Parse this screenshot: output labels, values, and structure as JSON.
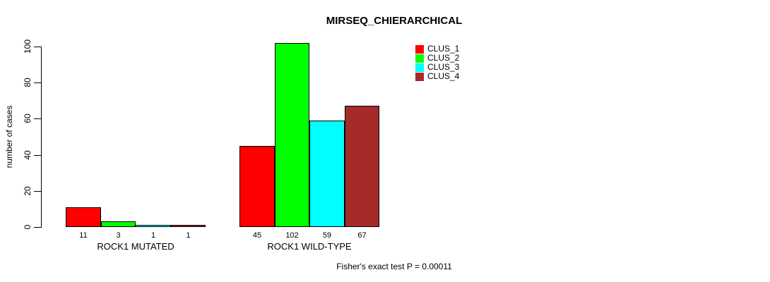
{
  "chart_data": {
    "type": "bar",
    "title": "MIRSEQ_CHIERARCHICAL",
    "xlabel": "",
    "ylabel": "number of cases",
    "ylim": [
      0,
      100
    ],
    "yticks": [
      0,
      20,
      40,
      60,
      80,
      100
    ],
    "grid": false,
    "legend_position": "top-right",
    "categories": [
      "ROCK1 MUTATED",
      "ROCK1 WILD-TYPE"
    ],
    "series": [
      {
        "name": "CLUS_1",
        "color": "#ff0000",
        "values": [
          11,
          45
        ]
      },
      {
        "name": "CLUS_2",
        "color": "#00ff00",
        "values": [
          3,
          102
        ]
      },
      {
        "name": "CLUS_3",
        "color": "#00ffff",
        "values": [
          1,
          59
        ]
      },
      {
        "name": "CLUS_4",
        "color": "#a52a2a",
        "values": [
          1,
          67
        ]
      }
    ],
    "bar_value_labels": [
      [
        11,
        3,
        1,
        1
      ],
      [
        45,
        102,
        59,
        67
      ]
    ],
    "annotation": "Fisher's exact test P = 0.00011"
  }
}
